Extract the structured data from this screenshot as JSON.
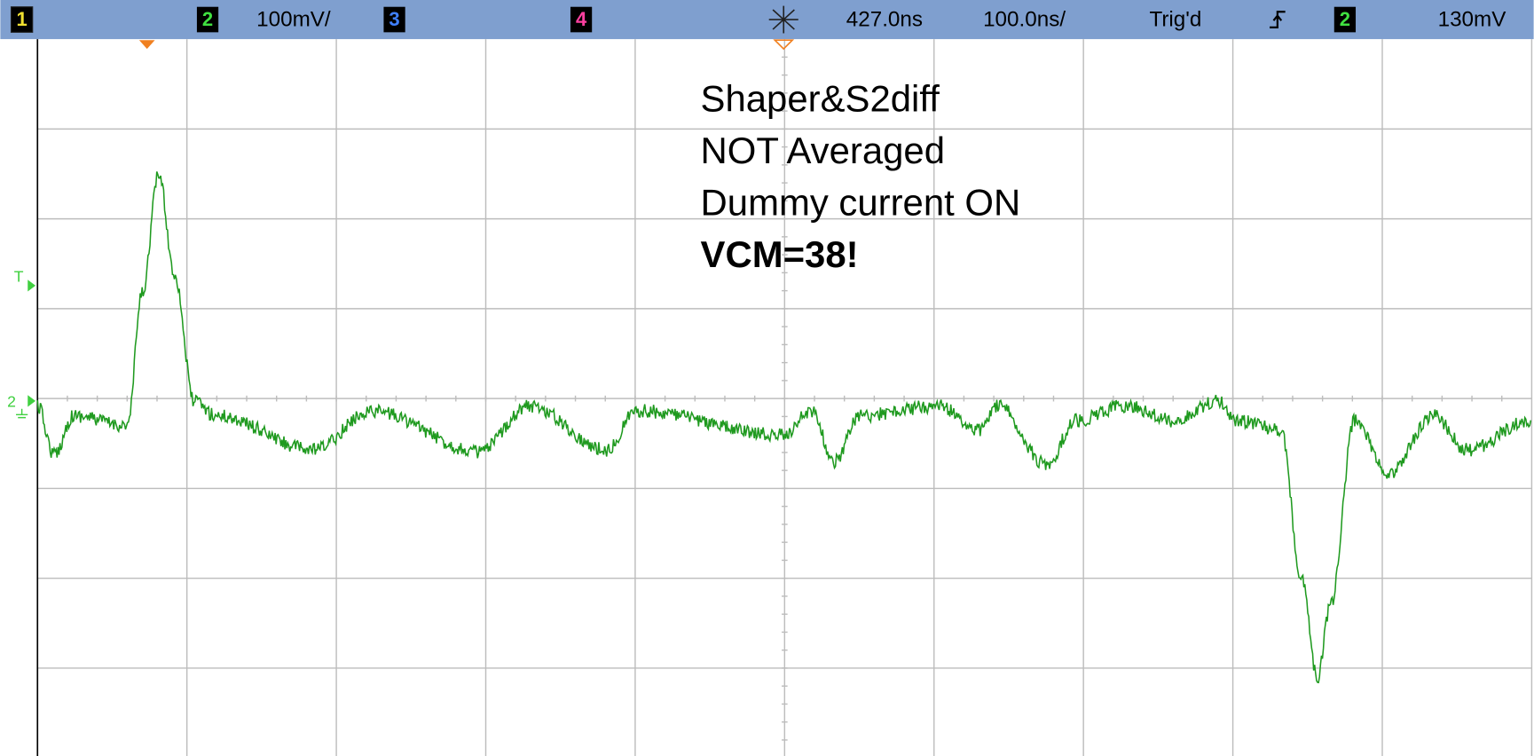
{
  "status_bar": {
    "channel_1": "1",
    "channel_2": "2",
    "channel_2_scale": "100mV/",
    "channel_3": "3",
    "channel_4": "4",
    "time_delay": "427.0ns",
    "time_scale": "100.0ns/",
    "trigger_status": "Trig'd",
    "trigger_source": "2",
    "trigger_level": "130mV"
  },
  "annotation": {
    "lines": [
      "Shaper&S2diff",
      "NOT Averaged",
      "Dummy current ON"
    ],
    "emphasis": "VCM=38!"
  },
  "markers": {
    "trigger": "T",
    "channel_2_ground": "2"
  }
}
